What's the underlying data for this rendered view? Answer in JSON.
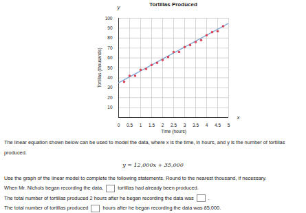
{
  "chart_data": {
    "type": "scatter",
    "title": "Tortillas Produced",
    "x_label": "Time (hours)",
    "y_label": "Tortillas (thousands)",
    "axis_symbols": {
      "x": "x",
      "y": "y"
    },
    "xlim": [
      0,
      5
    ],
    "ylim": [
      0,
      100
    ],
    "xticks": [
      0,
      0.5,
      1,
      1.5,
      2,
      2.5,
      3,
      3.5,
      4,
      4.5,
      5
    ],
    "yticks": [
      10,
      20,
      30,
      40,
      50,
      60,
      70,
      80,
      90,
      100
    ],
    "grid": true,
    "series": [
      {
        "type": "line",
        "color": "#7fa6d4",
        "x": [
          0,
          5
        ],
        "values": [
          35,
          95
        ]
      },
      {
        "type": "scatter",
        "color": "#d9465a",
        "marker": "circle",
        "x": [
          0.25,
          0.5,
          0.75,
          1,
          1.25,
          1.5,
          1.75,
          2,
          2.25,
          2.5,
          2.75,
          3,
          3.25,
          3.5,
          3.75,
          4,
          4.25,
          4.5,
          4.75
        ],
        "values": [
          36,
          42,
          42,
          48,
          49,
          53,
          55,
          58,
          61,
          66,
          66,
          71,
          73,
          76,
          78,
          83,
          86,
          87,
          92
        ]
      }
    ]
  },
  "question": {
    "intro": "The linear equation shown below can be used to model the data, where x is the time, in hours, and y is the number of tortillas produced.",
    "equation": "y = 12,000x + 35,000",
    "instruction": "Use the graph of the linear model to complete the following statements. Round to the nearest thousand, if necessary.",
    "statements": [
      {
        "before": "When Mr. Nichols began recording the data,",
        "after": "tortillas had already been produced."
      },
      {
        "before": "The total number of tortillas produced 2 hours after he began recording the data was",
        "after": "."
      },
      {
        "before": "The total number of tortillas produced",
        "after": "hours after he began recording the data was 85,000."
      }
    ]
  }
}
